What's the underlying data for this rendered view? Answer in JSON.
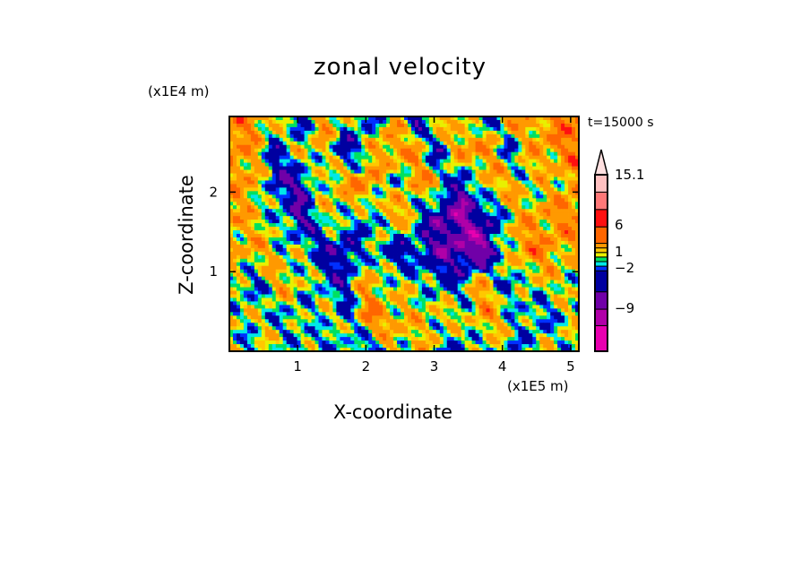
{
  "chart_data": {
    "type": "heatmap",
    "title": "zonal velocity",
    "xlabel": "X-coordinate",
    "ylabel": "Z-coordinate",
    "x_unit": "(x1E5 m)",
    "y_unit": "(x1E4 m)",
    "time_label": "t=15000 s",
    "xlim": [
      0,
      5.12
    ],
    "ylim": [
      0,
      2.95
    ],
    "xticks": [
      "1",
      "2",
      "3",
      "4",
      "5"
    ],
    "xtick_values": [
      1,
      2,
      3,
      4,
      5
    ],
    "yticks": [
      "1",
      "2"
    ],
    "ytick_values": [
      1,
      2
    ],
    "colorbar": {
      "labels": [
        "15.1",
        "6",
        "1",
        "−2",
        "−9"
      ],
      "label_values": [
        15.1,
        6,
        1,
        -2,
        -9
      ],
      "bounds": [
        -15,
        -12,
        -9,
        -6,
        -2,
        -1,
        0,
        1,
        2,
        3,
        6,
        9,
        12,
        15.1
      ],
      "colors": [
        "#e800b0",
        "#b000a8",
        "#7000a8",
        "#0000a0",
        "#0030ff",
        "#00e8e8",
        "#00e060",
        "#e8f000",
        "#ffc800",
        "#ff9900",
        "#ff6600",
        "#ff1010",
        "#ff7878",
        "#ffc0c0"
      ],
      "over_color": "#ffe0e0"
    },
    "field_rows_top_to_bottom": [
      [
        4,
        6,
        3,
        -4,
        5,
        2,
        -3,
        4,
        -6,
        5,
        2,
        -4,
        5,
        3,
        6,
        8
      ],
      [
        6,
        4,
        -3,
        2,
        3,
        -5,
        2,
        6,
        4,
        -4,
        6,
        5,
        -2,
        4,
        5,
        6
      ],
      [
        3,
        5,
        -4,
        -5,
        2,
        4,
        6,
        -2,
        5,
        3,
        -6,
        4,
        3,
        1,
        2,
        5
      ],
      [
        5,
        2,
        1,
        -6,
        1,
        2,
        -3,
        6,
        0,
        -7,
        -9,
        -5,
        2,
        4,
        5,
        6
      ],
      [
        3,
        4,
        2,
        1,
        -4,
        -5,
        1,
        -4,
        -3,
        -6,
        -8,
        -9,
        3,
        6,
        4,
        3
      ],
      [
        1,
        -2,
        3,
        2,
        -1,
        -3,
        5,
        0,
        2,
        -2,
        -1,
        5,
        -3,
        2,
        1,
        2
      ],
      [
        2,
        1,
        0,
        -1,
        2,
        -2,
        6,
        4,
        2,
        3,
        1,
        4,
        2,
        -2,
        0,
        1
      ],
      [
        1,
        -1,
        2,
        0,
        -2,
        1,
        -3,
        2,
        3,
        0,
        -2,
        1,
        -1,
        0,
        2,
        1
      ]
    ]
  }
}
